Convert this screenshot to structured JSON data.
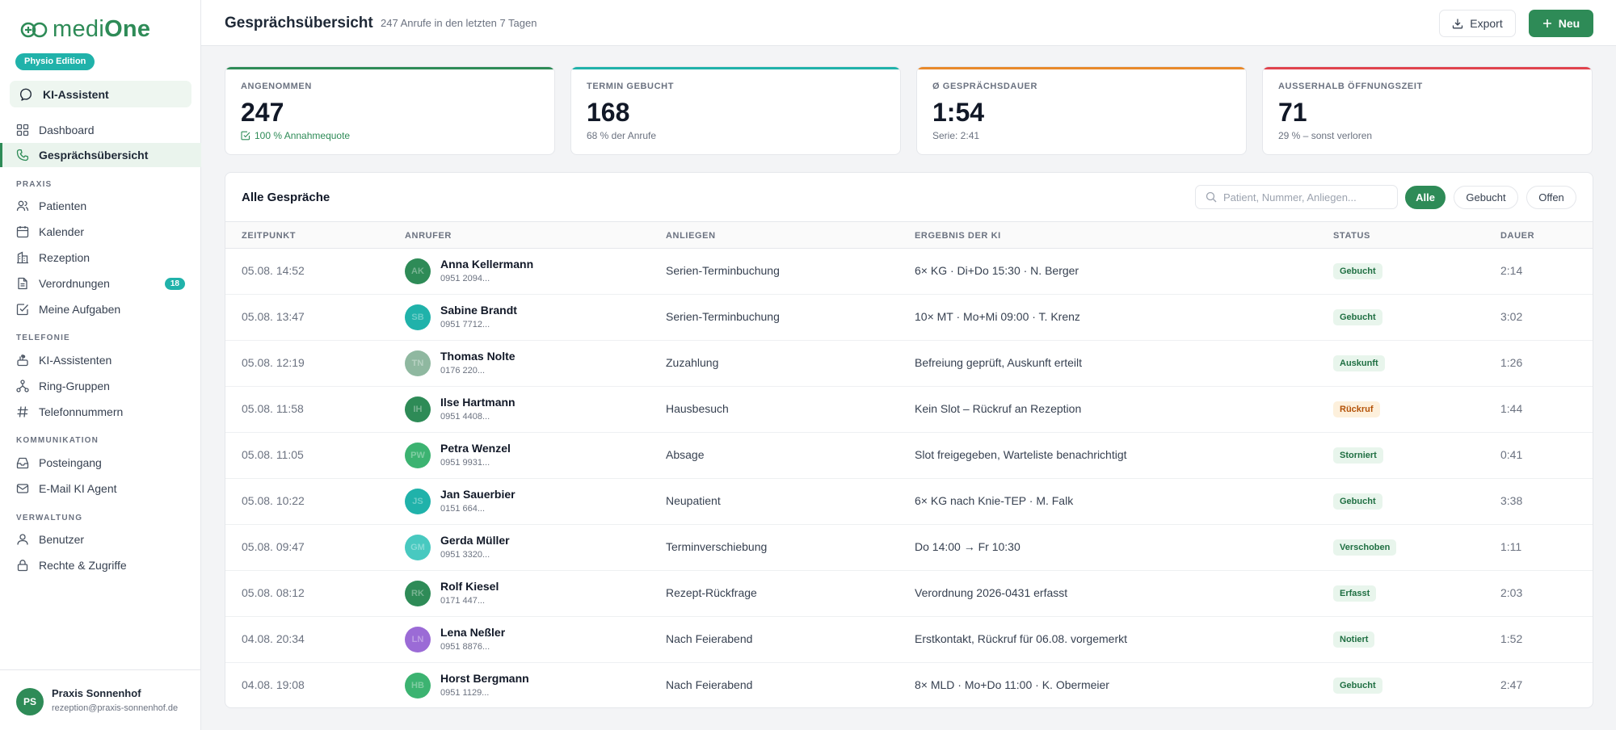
{
  "app": {
    "logo_prefix": "medi",
    "logo_suffix": "One",
    "edition": "Physio Edition",
    "ki_label": "KI-Assistent"
  },
  "sidebar": {
    "top": [
      {
        "label": "Dashboard",
        "icon": "grid-icon"
      },
      {
        "label": "Gesprächsübersicht",
        "icon": "phone-icon",
        "active": true
      }
    ],
    "sections": [
      {
        "title": "PRAXIS",
        "items": [
          {
            "label": "Patienten",
            "icon": "users-icon"
          },
          {
            "label": "Kalender",
            "icon": "calendar-icon"
          },
          {
            "label": "Rezeption",
            "icon": "building-icon"
          },
          {
            "label": "Verordnungen",
            "icon": "document-icon",
            "badge": "18"
          },
          {
            "label": "Meine Aufgaben",
            "icon": "checkbox-icon"
          }
        ]
      },
      {
        "title": "TELEFONIE",
        "items": [
          {
            "label": "KI-Assistenten",
            "icon": "robot-icon"
          },
          {
            "label": "Ring-Gruppen",
            "icon": "network-icon"
          },
          {
            "label": "Telefonnummern",
            "icon": "hash-icon"
          }
        ]
      },
      {
        "title": "KOMMUNIKATION",
        "items": [
          {
            "label": "Posteingang",
            "icon": "inbox-icon"
          },
          {
            "label": "E-Mail KI Agent",
            "icon": "mail-icon"
          }
        ]
      },
      {
        "title": "VERWALTUNG",
        "items": [
          {
            "label": "Benutzer",
            "icon": "user-icon"
          },
          {
            "label": "Rechte & Zugriffe",
            "icon": "lock-icon"
          }
        ]
      }
    ],
    "user": {
      "initials": "PS",
      "name": "Praxis Sonnenhof",
      "email": "rezeption@praxis-sonnenhof.de"
    }
  },
  "header": {
    "title": "Gesprächsübersicht",
    "subtitle": "247 Anrufe in den letzten 7 Tagen",
    "export_label": "Export",
    "new_label": "Neu"
  },
  "stats": [
    {
      "label": "ANGENOMMEN",
      "value": "247",
      "sub": "100 % Annahmequote",
      "accent": "#2e8b57",
      "sub_green": true
    },
    {
      "label": "TERMIN GEBUCHT",
      "value": "168",
      "sub": "68 % der Anrufe",
      "accent": "#20b2aa"
    },
    {
      "label": "Ø GESPRÄCHSDAUER",
      "value": "1:54",
      "sub": "Serie: 2:41",
      "accent": "#e8892b"
    },
    {
      "label": "AUSSERHALB ÖFFNUNGSZEIT",
      "value": "71",
      "sub": "29 % – sonst verloren",
      "accent": "#e0434d"
    }
  ],
  "table": {
    "title": "Alle Gespräche",
    "search_placeholder": "Patient, Nummer, Anliegen...",
    "filters": [
      "Alle",
      "Gebucht",
      "Offen"
    ],
    "active_filter": "Alle",
    "columns": [
      "ZEITPUNKT",
      "ANRUFER",
      "ANLIEGEN",
      "ERGEBNIS DER KI",
      "STATUS",
      "DAUER"
    ],
    "rows": [
      {
        "time": "05.08. 14:52",
        "initials": "AK",
        "color": "#2e8b57",
        "name": "Anna Kellermann",
        "number": "0951 2094...",
        "concern": "Serien-Terminbuchung",
        "result": "6× KG · Di+Do 15:30 · N. Berger",
        "status": "Gebucht",
        "status_type": "green",
        "duration": "2:14"
      },
      {
        "time": "05.08. 13:47",
        "initials": "SB",
        "color": "#20b2aa",
        "name": "Sabine Brandt",
        "number": "0951 7712...",
        "concern": "Serien-Terminbuchung",
        "result": "10× MT · Mo+Mi 09:00 · T. Krenz",
        "status": "Gebucht",
        "status_type": "green",
        "duration": "3:02"
      },
      {
        "time": "05.08. 12:19",
        "initials": "TN",
        "color": "#8fb8a0",
        "name": "Thomas Nolte",
        "number": "0176 220...",
        "concern": "Zuzahlung",
        "result": "Befreiung geprüft, Auskunft erteilt",
        "status": "Auskunft",
        "status_type": "green",
        "duration": "1:26"
      },
      {
        "time": "05.08. 11:58",
        "initials": "IH",
        "color": "#2e8b57",
        "name": "Ilse Hartmann",
        "number": "0951 4408...",
        "concern": "Hausbesuch",
        "result": "Kein Slot – Rückruf an Rezeption",
        "status": "Rückruf",
        "status_type": "orange",
        "duration": "1:44"
      },
      {
        "time": "05.08. 11:05",
        "initials": "PW",
        "color": "#3cb371",
        "name": "Petra Wenzel",
        "number": "0951 9931...",
        "concern": "Absage",
        "result": "Slot freigegeben, Warteliste benachrichtigt",
        "status": "Storniert",
        "status_type": "green",
        "duration": "0:41"
      },
      {
        "time": "05.08. 10:22",
        "initials": "JS",
        "color": "#20b2aa",
        "name": "Jan Sauerbier",
        "number": "0151 664...",
        "concern": "Neupatient",
        "result": "6× KG nach Knie-TEP · M. Falk",
        "status": "Gebucht",
        "status_type": "green",
        "duration": "3:38"
      },
      {
        "time": "05.08. 09:47",
        "initials": "GM",
        "color": "#48c9c0",
        "name": "Gerda Müller",
        "number": "0951 3320...",
        "concern": "Terminverschiebung",
        "result": "Do 14:00 → Fr 10:30",
        "status": "Verschoben",
        "status_type": "green",
        "duration": "1:11"
      },
      {
        "time": "05.08. 08:12",
        "initials": "RK",
        "color": "#2e8b57",
        "name": "Rolf Kiesel",
        "number": "0171 447...",
        "concern": "Rezept-Rückfrage",
        "result": "Verordnung 2026-0431 erfasst",
        "status": "Erfasst",
        "status_type": "green",
        "duration": "2:03"
      },
      {
        "time": "04.08. 20:34",
        "initials": "LN",
        "color": "#9b6bd6",
        "name": "Lena Neßler",
        "number": "0951 8876...",
        "concern": "Nach Feierabend",
        "result": "Erstkontakt, Rückruf für 06.08. vorgemerkt",
        "status": "Notiert",
        "status_type": "green",
        "duration": "1:52"
      },
      {
        "time": "04.08. 19:08",
        "initials": "HB",
        "color": "#3cb371",
        "name": "Horst Bergmann",
        "number": "0951 1129...",
        "concern": "Nach Feierabend",
        "result": "8× MLD · Mo+Do 11:00 · K. Obermeier",
        "status": "Gebucht",
        "status_type": "green",
        "duration": "2:47"
      }
    ]
  }
}
